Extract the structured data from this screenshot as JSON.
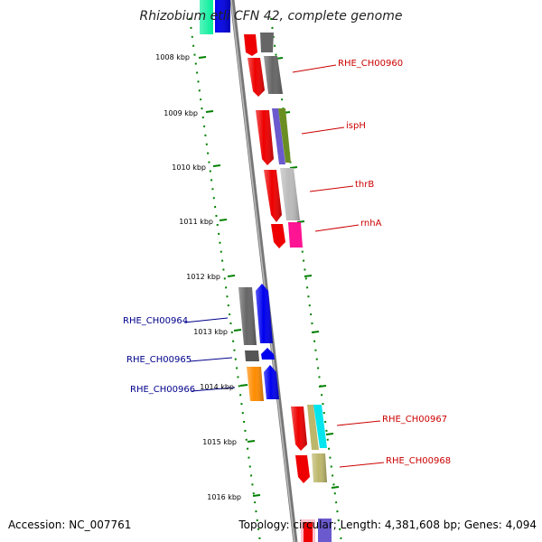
{
  "title": "Rhizobium etli CFN 42, complete genome",
  "footer": {
    "accession": "Accession: NC_007761",
    "stats": "Topology: circular; Length: 4,381,608 bp; Genes: 4,094"
  },
  "kbp_labels": [
    "1008 kbp",
    "1009 kbp",
    "1010 kbp",
    "1011 kbp",
    "1012 kbp",
    "1013 kbp",
    "1014 kbp",
    "1015 kbp",
    "1016 kbp"
  ],
  "gene_labels": {
    "rhe_ch00960": "RHE_CH00960",
    "isph": "ispH",
    "thrb": "thrB",
    "rnha": "rnhA",
    "rhe_ch00964": "RHE_CH00964",
    "rhe_ch00965": "RHE_CH00965",
    "rhe_ch00966": "RHE_CH00966",
    "rhe_ch00967": "RHE_CH00967",
    "rhe_ch00968": "RHE_CH00968"
  },
  "colors": {
    "backbone": "#8a8a8a",
    "tick": "#008000",
    "forward_label": "#cc0000",
    "reverse_label": "#00008b",
    "red": "#ee0000",
    "dark_gray": "#666666",
    "light_gray": "#bbbbbb",
    "blue": "#0000ee",
    "slate_blue": "#6a5acd",
    "olive": "#6b8e23",
    "pink": "#ff1493",
    "cyan": "#00e5ee",
    "khaki": "#bdb76b",
    "orange": "#ff8c00",
    "spring_green": "#00ee99"
  }
}
